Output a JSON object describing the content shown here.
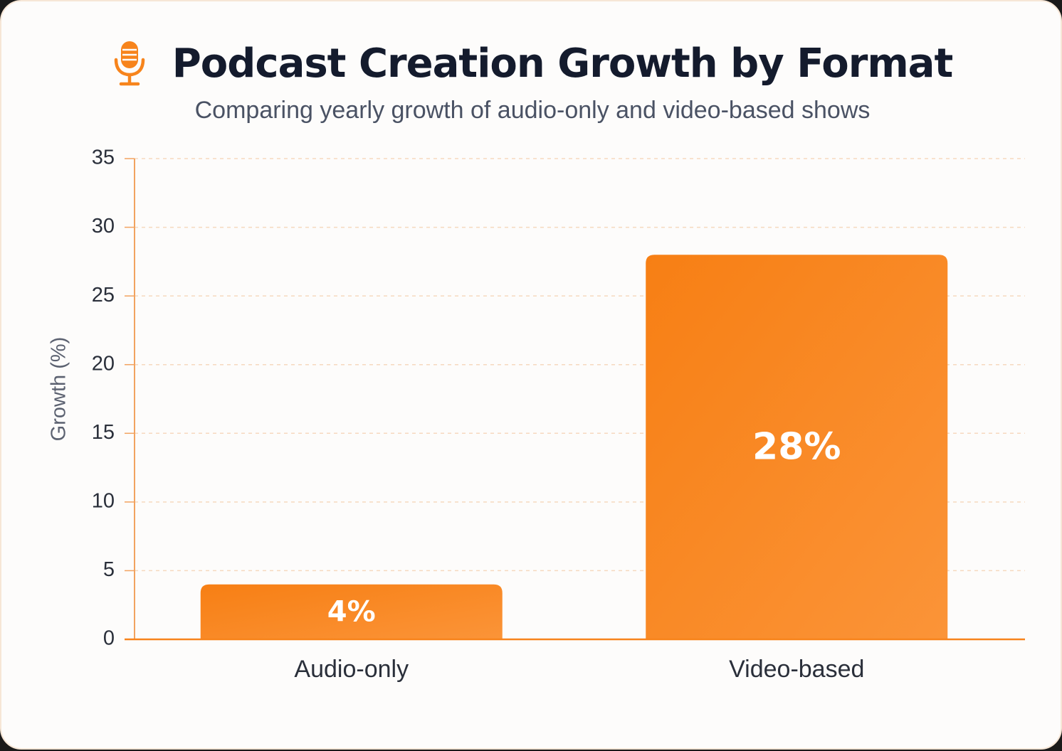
{
  "header": {
    "title": "Podcast Creation Growth by Format",
    "subtitle": "Comparing yearly growth of audio-only and video-based shows",
    "icon": "microphone-icon"
  },
  "colors": {
    "accent": "#f7841c",
    "grid": "#f6d9bf",
    "axis": "#f2a360"
  },
  "chart_data": {
    "type": "bar",
    "title": "Podcast Creation Growth by Format",
    "subtitle": "Comparing yearly growth of audio-only and video-based shows",
    "categories": [
      "Audio-only",
      "Video-based"
    ],
    "values": [
      4,
      28
    ],
    "data_labels": [
      "4%",
      "28%"
    ],
    "ylabel": "Growth (%)",
    "xlabel": "",
    "ylim": [
      0,
      35
    ],
    "yticks": [
      "0",
      "5",
      "10",
      "15",
      "20",
      "25",
      "30",
      "35"
    ],
    "grid": true,
    "legend": "none"
  }
}
